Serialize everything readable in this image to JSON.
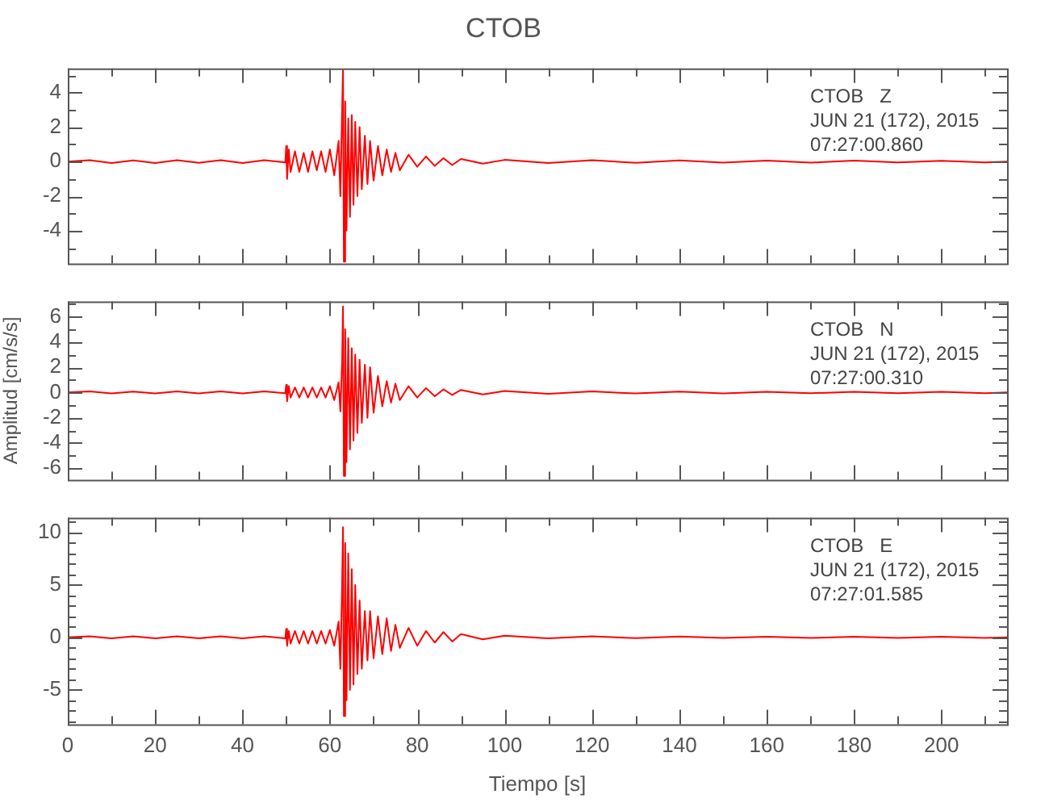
{
  "chart_data": [
    {
      "type": "line",
      "title": "CTOB",
      "tick_labels": "y",
      "grid": false,
      "legend": false,
      "marker": "none",
      "line_style": "solid",
      "annotations": [
        "CTOB   Z",
        "JUN 21 (172), 2015",
        "07:27:00.860"
      ],
      "xlim": [
        0,
        215
      ],
      "xticks": [
        0,
        {
          "value": 10,
          "label": null
        },
        20,
        {
          "value": 30,
          "label": null
        },
        40,
        {
          "value": 50,
          "label": null
        },
        60,
        {
          "value": 70,
          "label": null
        },
        80,
        {
          "value": 90,
          "label": null
        },
        100,
        {
          "value": 110,
          "label": null
        },
        120,
        {
          "value": 130,
          "label": null
        },
        140,
        {
          "value": 150,
          "label": null
        },
        160,
        {
          "value": 170,
          "label": null
        },
        180,
        {
          "value": 190,
          "label": null
        },
        200,
        {
          "value": 210,
          "label": null
        }
      ],
      "ylim": [
        -5.9,
        5.4
      ],
      "yticks": [
        {
          "value": -5,
          "label": null
        },
        -4,
        {
          "value": -3,
          "label": null
        },
        -2,
        {
          "value": -1,
          "label": null
        },
        0,
        {
          "value": 1,
          "label": null
        },
        2,
        {
          "value": 3,
          "label": null
        },
        4,
        {
          "value": 5,
          "label": null
        }
      ],
      "series": [
        {
          "color": "#ff0000",
          "x": [
            0,
            5,
            10,
            15,
            20,
            25,
            30,
            35,
            40,
            45,
            49.8,
            50,
            50.2,
            50.6,
            51,
            52,
            53,
            54,
            55,
            56,
            57,
            58,
            59,
            60,
            61,
            62,
            62.4,
            62.8,
            63,
            63.2,
            63.5,
            63.8,
            64.2,
            64.6,
            65,
            65.4,
            65.8,
            66.3,
            66.8,
            67.3,
            68,
            68.6,
            69.2,
            70,
            71,
            72,
            73,
            74,
            75,
            76,
            78,
            80,
            82,
            84,
            86,
            88,
            90,
            95,
            100,
            110,
            120,
            130,
            140,
            150,
            160,
            170,
            180,
            190,
            200,
            210,
            215
          ],
          "values": [
            0,
            0.08,
            -0.08,
            0.07,
            -0.08,
            0.08,
            -0.07,
            0.08,
            -0.08,
            0.08,
            -0.05,
            0.9,
            -1.0,
            0.7,
            -0.6,
            0.6,
            -0.6,
            0.5,
            -0.6,
            0.6,
            -0.5,
            0.6,
            -0.6,
            0.7,
            -0.8,
            1.2,
            -2,
            3,
            5.3,
            -5.8,
            3.5,
            -4,
            2.5,
            -3.2,
            2.7,
            -2.5,
            2.3,
            -2,
            2,
            -1.6,
            1.5,
            -1.3,
            1.2,
            -1.1,
            0.9,
            -0.8,
            0.7,
            -0.6,
            0.5,
            -0.5,
            0.4,
            -0.3,
            0.3,
            -0.25,
            0.2,
            -0.2,
            0.15,
            -0.12,
            0.1,
            -0.08,
            0.08,
            -0.07,
            0.07,
            -0.06,
            0.06,
            -0.06,
            0.06,
            -0.05,
            0.05,
            -0.05,
            0
          ]
        }
      ]
    },
    {
      "type": "line",
      "ylabel": "Amplitud [cm/s/s]",
      "tick_labels": "y",
      "grid": false,
      "legend": false,
      "marker": "none",
      "line_style": "solid",
      "annotations": [
        "CTOB   N",
        "JUN 21 (172), 2015",
        "07:27:00.310"
      ],
      "xlim": [
        0,
        215
      ],
      "xticks": [
        0,
        {
          "value": 10,
          "label": null
        },
        20,
        {
          "value": 30,
          "label": null
        },
        40,
        {
          "value": 50,
          "label": null
        },
        60,
        {
          "value": 70,
          "label": null
        },
        80,
        {
          "value": 90,
          "label": null
        },
        100,
        {
          "value": 110,
          "label": null
        },
        120,
        {
          "value": 130,
          "label": null
        },
        140,
        {
          "value": 150,
          "label": null
        },
        160,
        {
          "value": 170,
          "label": null
        },
        180,
        {
          "value": 190,
          "label": null
        },
        200,
        {
          "value": 210,
          "label": null
        }
      ],
      "ylim": [
        -6.9,
        7.2
      ],
      "yticks": [
        -6,
        {
          "value": -5,
          "label": null
        },
        -4,
        {
          "value": -3,
          "label": null
        },
        -2,
        {
          "value": -1,
          "label": null
        },
        0,
        {
          "value": 1,
          "label": null
        },
        2,
        {
          "value": 3,
          "label": null
        },
        4,
        {
          "value": 5,
          "label": null
        },
        6,
        {
          "value": 7,
          "label": null
        }
      ],
      "series": [
        {
          "color": "#ff0000",
          "x": [
            0,
            5,
            10,
            15,
            20,
            25,
            30,
            35,
            40,
            45,
            49.8,
            50,
            50.2,
            50.6,
            51,
            52,
            53,
            54,
            55,
            56,
            57,
            58,
            59,
            60,
            61,
            62,
            62.4,
            62.8,
            63,
            63.2,
            63.5,
            63.8,
            64.2,
            64.6,
            65,
            65.4,
            65.8,
            66.3,
            66.8,
            67.3,
            68,
            68.6,
            69.2,
            70,
            71,
            72,
            73,
            74,
            75,
            76,
            78,
            80,
            82,
            84,
            86,
            88,
            90,
            95,
            100,
            110,
            120,
            130,
            140,
            150,
            160,
            170,
            180,
            190,
            200,
            210,
            215
          ],
          "values": [
            0,
            0.08,
            -0.08,
            0.07,
            -0.08,
            0.08,
            -0.07,
            0.08,
            -0.08,
            0.08,
            -0.05,
            0.6,
            -0.7,
            0.5,
            -0.4,
            0.4,
            -0.4,
            0.4,
            -0.4,
            0.4,
            -0.4,
            0.4,
            -0.4,
            0.5,
            -0.6,
            0.8,
            -1.5,
            2.5,
            6.8,
            -6.6,
            5,
            -5.5,
            4.3,
            -4.5,
            3.5,
            -3.8,
            3,
            -3.2,
            2.6,
            -2.4,
            2.2,
            -2,
            2,
            -1.6,
            1.3,
            -1.1,
            0.9,
            -0.8,
            0.7,
            -0.6,
            0.5,
            -0.4,
            0.35,
            -0.3,
            0.25,
            -0.2,
            0.2,
            -0.15,
            0.12,
            -0.1,
            0.08,
            -0.08,
            0.07,
            -0.07,
            0.06,
            -0.06,
            0.06,
            -0.05,
            0.05,
            -0.05,
            0
          ]
        }
      ]
    },
    {
      "type": "line",
      "xlabel": "Tiempo [s]",
      "grid": false,
      "legend": false,
      "marker": "none",
      "line_style": "solid",
      "annotations": [
        "CTOB   E",
        "JUN 21 (172), 2015",
        "07:27:01.585"
      ],
      "xlim": [
        0,
        215
      ],
      "xticks": [
        0,
        {
          "value": 10,
          "label": null
        },
        20,
        {
          "value": 30,
          "label": null
        },
        40,
        {
          "value": 50,
          "label": null
        },
        60,
        {
          "value": 70,
          "label": null
        },
        80,
        {
          "value": 90,
          "label": null
        },
        100,
        {
          "value": 110,
          "label": null
        },
        120,
        {
          "value": 130,
          "label": null
        },
        140,
        {
          "value": 150,
          "label": null
        },
        160,
        {
          "value": 170,
          "label": null
        },
        180,
        {
          "value": 190,
          "label": null
        },
        200,
        {
          "value": 210,
          "label": null
        }
      ],
      "ylim": [
        -8.3,
        11.4
      ],
      "yticks": [
        {
          "value": -8,
          "label": null
        },
        {
          "value": -7,
          "label": null
        },
        {
          "value": -6,
          "label": null
        },
        -5,
        {
          "value": -4,
          "label": null
        },
        {
          "value": -3,
          "label": null
        },
        {
          "value": -2,
          "label": null
        },
        {
          "value": -1,
          "label": null
        },
        0,
        {
          "value": 1,
          "label": null
        },
        {
          "value": 2,
          "label": null
        },
        {
          "value": 3,
          "label": null
        },
        {
          "value": 4,
          "label": null
        },
        5,
        {
          "value": 6,
          "label": null
        },
        {
          "value": 7,
          "label": null
        },
        {
          "value": 8,
          "label": null
        },
        {
          "value": 9,
          "label": null
        },
        10,
        {
          "value": 11,
          "label": null
        }
      ],
      "series": [
        {
          "color": "#ff0000",
          "x": [
            0,
            5,
            10,
            15,
            20,
            25,
            30,
            35,
            40,
            45,
            49.8,
            50,
            50.2,
            50.6,
            51,
            52,
            53,
            54,
            55,
            56,
            57,
            58,
            59,
            60,
            61,
            62,
            62.4,
            62.8,
            63,
            63.2,
            63.5,
            63.8,
            64.2,
            64.6,
            65,
            65.4,
            65.8,
            66.3,
            66.8,
            67.3,
            68,
            68.6,
            69.2,
            70,
            71,
            72,
            73,
            74,
            75,
            76,
            78,
            80,
            82,
            84,
            86,
            88,
            90,
            95,
            100,
            110,
            120,
            130,
            140,
            150,
            160,
            170,
            180,
            190,
            200,
            210,
            215
          ],
          "values": [
            0,
            0.1,
            -0.1,
            0.1,
            -0.1,
            0.1,
            -0.1,
            0.1,
            -0.1,
            0.1,
            -0.1,
            0.8,
            -0.8,
            0.6,
            -0.6,
            0.6,
            -0.6,
            0.6,
            -0.6,
            0.6,
            -0.6,
            0.6,
            -0.6,
            0.7,
            -0.8,
            1.5,
            -3,
            5,
            10.5,
            -7.5,
            9,
            -6,
            8,
            -5,
            6.5,
            -4.5,
            5,
            -3.5,
            3.5,
            -3,
            2.5,
            -2.2,
            2.5,
            -2,
            2,
            -1.6,
            1.8,
            -1.3,
            1.2,
            -1,
            0.9,
            -0.8,
            0.6,
            -0.5,
            0.5,
            -0.4,
            0.3,
            -0.2,
            0.15,
            -0.1,
            0.1,
            -0.08,
            0.08,
            -0.06,
            0.06,
            -0.06,
            0.06,
            -0.05,
            0.05,
            -0.05,
            0
          ]
        }
      ]
    }
  ]
}
